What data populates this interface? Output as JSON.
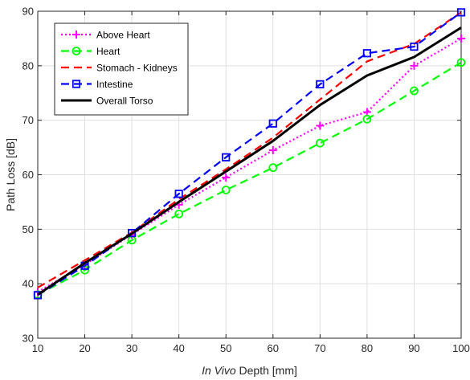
{
  "chart_data": {
    "type": "line",
    "title": "",
    "xlabel_italic": "In Vivo",
    "xlabel_rest": " Depth [mm]",
    "ylabel": "Path Loss [dB]",
    "xlim": [
      10,
      100
    ],
    "ylim": [
      30,
      90
    ],
    "xticks": [
      10,
      20,
      30,
      40,
      50,
      60,
      70,
      80,
      90,
      100
    ],
    "yticks": [
      30,
      40,
      50,
      60,
      70,
      80,
      90
    ],
    "grid": true,
    "legend_position": "top-left",
    "x": [
      10,
      20,
      30,
      40,
      50,
      60,
      70,
      80,
      90,
      100
    ],
    "series": [
      {
        "name": "Above Heart",
        "values": [
          38.5,
          43.5,
          49,
          54.5,
          59.5,
          64.5,
          69,
          71.5,
          80,
          85
        ],
        "color": "#ff00ff",
        "dash": "dotted",
        "marker": "plus"
      },
      {
        "name": "Heart",
        "values": [
          38,
          42.5,
          48,
          52.8,
          57.2,
          61.3,
          65.8,
          70.2,
          75.4,
          80.6
        ],
        "color": "#00ff00",
        "dash": "dashed",
        "marker": "circle"
      },
      {
        "name": "Stomach - Kidneys",
        "values": [
          39.3,
          44.3,
          49.4,
          55.5,
          61,
          66.8,
          73.8,
          80.8,
          84,
          89.8
        ],
        "color": "#ff0000",
        "dash": "dashed",
        "marker": "none"
      },
      {
        "name": "Intestine",
        "values": [
          37.9,
          43.3,
          49.3,
          56.5,
          63.2,
          69.4,
          76.6,
          82.3,
          83.5,
          89.8
        ],
        "color": "#0000ff",
        "dash": "dashed",
        "marker": "square"
      },
      {
        "name": "Overall Torso",
        "values": [
          38,
          43.8,
          49.2,
          55,
          60.6,
          66.2,
          72.8,
          78.2,
          81.6,
          87
        ],
        "color": "#000000",
        "dash": "solid",
        "marker": "none"
      }
    ]
  }
}
